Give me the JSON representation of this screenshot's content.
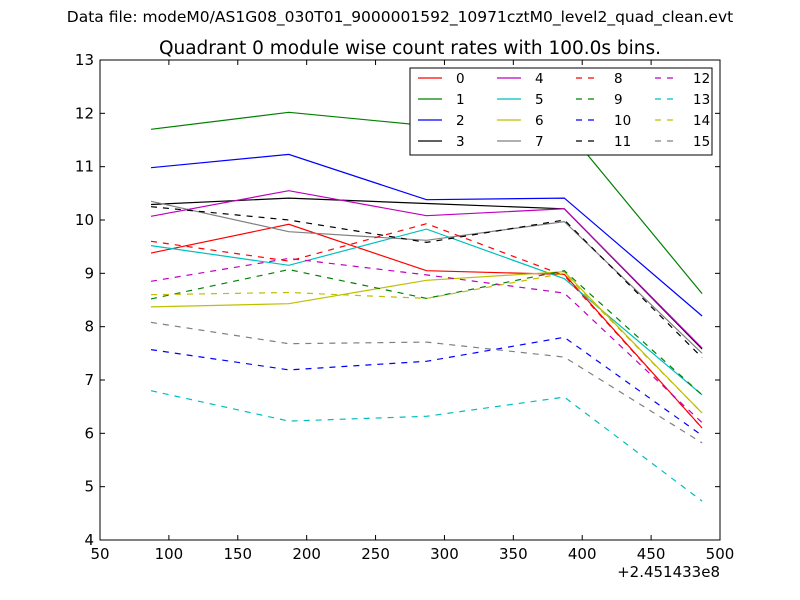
{
  "figure": {
    "suptitle": "Data file: modeM0/AS1G08_030T01_9000001592_10971cztM0_level2_quad_clean.evt"
  },
  "chart_data": {
    "type": "line",
    "title": "Quadrant 0 module wise count rates with 100.0s bins.",
    "xlabel": "",
    "ylabel": "",
    "x_offset_label": "+2.451433e8",
    "xlim": [
      50,
      500
    ],
    "ylim": [
      4,
      13
    ],
    "xticks": [
      "50",
      "100",
      "150",
      "200",
      "250",
      "300",
      "350",
      "400",
      "450",
      "500"
    ],
    "yticks": [
      "4",
      "5",
      "6",
      "7",
      "8",
      "9",
      "10",
      "11",
      "12",
      "13"
    ],
    "grid": false,
    "legend_position": "top-right",
    "legend_columns": 4,
    "x": [
      87,
      187,
      287,
      387,
      487
    ],
    "series": [
      {
        "name": "0",
        "color": "#ff0000",
        "style": "solid",
        "values": [
          9.38,
          9.92,
          9.05,
          8.98,
          6.1
        ]
      },
      {
        "name": "1",
        "color": "#008000",
        "style": "solid",
        "values": [
          11.7,
          12.02,
          11.77,
          11.75,
          8.62
        ]
      },
      {
        "name": "2",
        "color": "#0000ff",
        "style": "solid",
        "values": [
          10.98,
          11.23,
          10.38,
          10.41,
          8.2
        ]
      },
      {
        "name": "3",
        "color": "#000000",
        "style": "solid",
        "values": [
          10.29,
          10.41,
          10.31,
          10.21,
          7.58
        ]
      },
      {
        "name": "4",
        "color": "#bf00bf",
        "style": "solid",
        "values": [
          10.07,
          10.55,
          10.08,
          10.21,
          7.6
        ]
      },
      {
        "name": "5",
        "color": "#00bfbf",
        "style": "solid",
        "values": [
          9.52,
          9.15,
          9.83,
          8.9,
          6.72
        ]
      },
      {
        "name": "6",
        "color": "#bfbf00",
        "style": "solid",
        "values": [
          8.37,
          8.43,
          8.87,
          9.03,
          6.38
        ]
      },
      {
        "name": "7",
        "color": "#808080",
        "style": "solid",
        "values": [
          10.35,
          9.78,
          9.62,
          9.97,
          7.5
        ]
      },
      {
        "name": "8",
        "color": "#ff0000",
        "style": "dashed",
        "values": [
          9.6,
          9.23,
          9.93,
          8.96,
          6.1
        ]
      },
      {
        "name": "9",
        "color": "#008000",
        "style": "dashed",
        "values": [
          8.52,
          9.07,
          8.53,
          9.05,
          6.72
        ]
      },
      {
        "name": "10",
        "color": "#0000ff",
        "style": "dashed",
        "values": [
          7.57,
          7.19,
          7.35,
          7.8,
          5.96
        ]
      },
      {
        "name": "11",
        "color": "#000000",
        "style": "dashed",
        "values": [
          10.25,
          10.0,
          9.58,
          10.0,
          7.42
        ]
      },
      {
        "name": "12",
        "color": "#bf00bf",
        "style": "dashed",
        "values": [
          8.85,
          9.28,
          8.97,
          8.63,
          6.2
        ]
      },
      {
        "name": "13",
        "color": "#00bfbf",
        "style": "dashed",
        "values": [
          6.8,
          6.23,
          6.32,
          6.68,
          4.73
        ]
      },
      {
        "name": "14",
        "color": "#bfbf00",
        "style": "dashed",
        "values": [
          8.6,
          8.64,
          8.53,
          9.0,
          6.38
        ]
      },
      {
        "name": "15",
        "color": "#808080",
        "style": "dashed",
        "values": [
          8.08,
          7.68,
          7.71,
          7.43,
          5.82
        ]
      }
    ]
  }
}
